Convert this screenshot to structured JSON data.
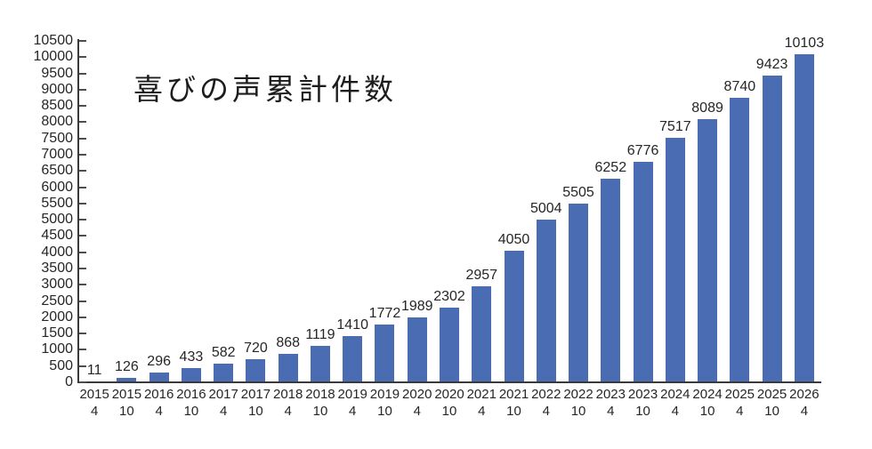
{
  "chart_data": {
    "type": "bar",
    "title": "喜びの声累計件数",
    "categories": [
      {
        "year": "2015",
        "month": "4"
      },
      {
        "year": "2015",
        "month": "10"
      },
      {
        "year": "2016",
        "month": "4"
      },
      {
        "year": "2016",
        "month": "10"
      },
      {
        "year": "2017",
        "month": "4"
      },
      {
        "year": "2017",
        "month": "10"
      },
      {
        "year": "2018",
        "month": "4"
      },
      {
        "year": "2018",
        "month": "10"
      },
      {
        "year": "2019",
        "month": "4"
      },
      {
        "year": "2019",
        "month": "10"
      },
      {
        "year": "2020",
        "month": "4"
      },
      {
        "year": "2020",
        "month": "10"
      },
      {
        "year": "2021",
        "month": "4"
      },
      {
        "year": "2021",
        "month": "10"
      },
      {
        "year": "2022",
        "month": "4"
      },
      {
        "year": "2022",
        "month": "10"
      },
      {
        "year": "2023",
        "month": "4"
      },
      {
        "year": "2023",
        "month": "10"
      },
      {
        "year": "2024",
        "month": "4"
      },
      {
        "year": "2024",
        "month": "10"
      },
      {
        "year": "2025",
        "month": "4"
      },
      {
        "year": "2025",
        "month": "10"
      },
      {
        "year": "2026",
        "month": "4"
      }
    ],
    "values": [
      11,
      126,
      296,
      433,
      582,
      720,
      868,
      1119,
      1410,
      1772,
      1989,
      2302,
      2957,
      4050,
      5004,
      5505,
      6252,
      6776,
      7517,
      8089,
      8740,
      9423,
      10103
    ],
    "value_labels_position": "above-bars",
    "xlabel": "",
    "ylabel": "",
    "ylim": [
      0,
      10500
    ],
    "ytick_step": 500,
    "ytick_labels": [
      0,
      500,
      1000,
      1500,
      2000,
      2500,
      3000,
      3500,
      4000,
      4500,
      5000,
      5500,
      6000,
      6500,
      7000,
      7500,
      8000,
      8500,
      9000,
      9500,
      10000,
      10500
    ],
    "grid": false,
    "legend": "none",
    "bar_color": "#4a6cb3",
    "axis_color": "#3a3a3a",
    "text_color": "#262626"
  }
}
